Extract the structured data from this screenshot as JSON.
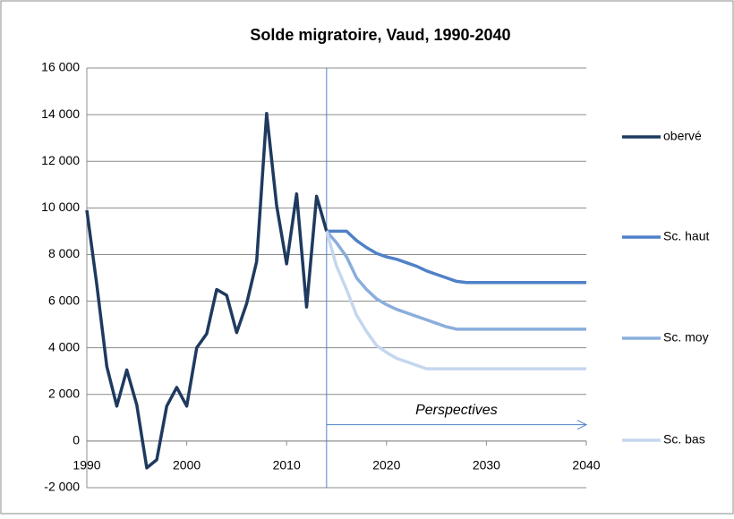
{
  "chart_data": {
    "type": "line",
    "title": "Solde migratoire, Vaud, 1990-2040",
    "xlim": [
      1990,
      2040
    ],
    "xticks": [
      1990,
      2000,
      2010,
      2020,
      2030,
      2040
    ],
    "ylim": [
      -2000,
      16000
    ],
    "yticks": [
      {
        "value": -2000,
        "label": "-2 000"
      },
      0,
      {
        "value": 2000,
        "label": "2 000"
      },
      {
        "value": 4000,
        "label": "4 000"
      },
      {
        "value": 6000,
        "label": "6 000"
      },
      {
        "value": 8000,
        "label": "8 000"
      },
      {
        "value": 10000,
        "label": "10 000"
      },
      {
        "value": 12000,
        "label": "12 000"
      },
      {
        "value": 14000,
        "label": "14 000"
      },
      {
        "value": 16000,
        "label": "16 000"
      }
    ],
    "grid": true,
    "legend": "right",
    "forecast_start": 2014,
    "annotation": "Perspectives",
    "series": [
      {
        "name": "obervé",
        "color": "#1f3a5f",
        "x": [
          1990,
          1991,
          1992,
          1993,
          1994,
          1995,
          1996,
          1997,
          1998,
          1999,
          2000,
          2001,
          2002,
          2003,
          2004,
          2005,
          2006,
          2007,
          2008,
          2009,
          2010,
          2011,
          2012,
          2013,
          2014
        ],
        "values": [
          9900,
          6700,
          3200,
          1500,
          3050,
          1550,
          -1150,
          -800,
          1500,
          2300,
          1500,
          4000,
          4600,
          6500,
          6250,
          4650,
          5900,
          7700,
          14050,
          10100,
          7600,
          10600,
          5750,
          10500,
          9000
        ]
      },
      {
        "name": "Sc. haut",
        "color": "#4f81c7",
        "x": [
          2014,
          2015,
          2016,
          2017,
          2018,
          2019,
          2020,
          2021,
          2022,
          2023,
          2024,
          2025,
          2026,
          2027,
          2028,
          2029,
          2030,
          2031,
          2032,
          2033,
          2034,
          2035,
          2036,
          2037,
          2038,
          2039,
          2040
        ],
        "values": [
          9000,
          9000,
          9000,
          8600,
          8300,
          8050,
          7900,
          7800,
          7650,
          7500,
          7300,
          7150,
          7000,
          6850,
          6800,
          6800,
          6800,
          6800,
          6800,
          6800,
          6800,
          6800,
          6800,
          6800,
          6800,
          6800,
          6800
        ]
      },
      {
        "name": "Sc. moy",
        "color": "#8aaedc",
        "x": [
          2014,
          2015,
          2016,
          2017,
          2018,
          2019,
          2020,
          2021,
          2022,
          2023,
          2024,
          2025,
          2026,
          2027,
          2028,
          2029,
          2030,
          2031,
          2032,
          2033,
          2034,
          2035,
          2036,
          2037,
          2038,
          2039,
          2040
        ],
        "values": [
          9000,
          8500,
          7900,
          7000,
          6500,
          6100,
          5850,
          5650,
          5500,
          5350,
          5200,
          5050,
          4900,
          4800,
          4800,
          4800,
          4800,
          4800,
          4800,
          4800,
          4800,
          4800,
          4800,
          4800,
          4800,
          4800,
          4800
        ]
      },
      {
        "name": "Sc. bas",
        "color": "#c5d7ee",
        "x": [
          2014,
          2015,
          2016,
          2017,
          2018,
          2019,
          2020,
          2021,
          2022,
          2023,
          2024,
          2025,
          2026,
          2027,
          2028,
          2029,
          2030,
          2031,
          2032,
          2033,
          2034,
          2035,
          2036,
          2037,
          2038,
          2039,
          2040
        ],
        "values": [
          9000,
          7500,
          6500,
          5400,
          4700,
          4100,
          3800,
          3550,
          3400,
          3250,
          3100,
          3100,
          3100,
          3100,
          3100,
          3100,
          3100,
          3100,
          3100,
          3100,
          3100,
          3100,
          3100,
          3100,
          3100,
          3100,
          3100
        ]
      }
    ]
  }
}
